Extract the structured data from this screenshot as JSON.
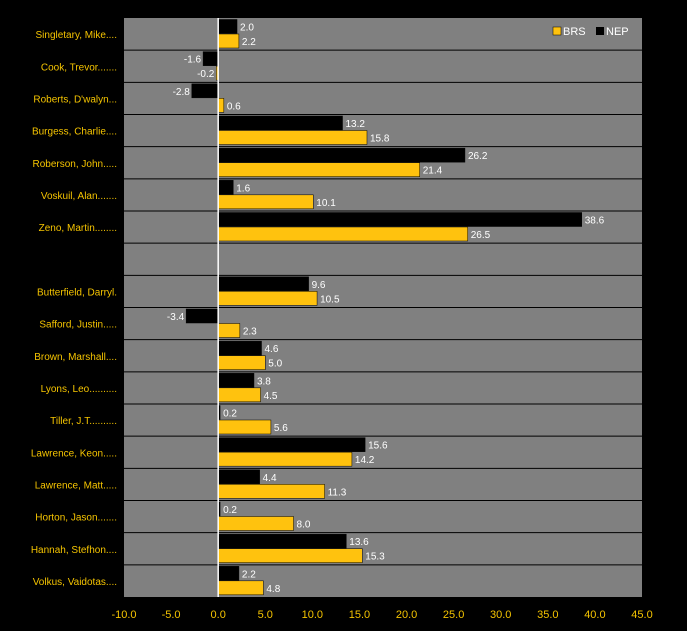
{
  "chart_data": {
    "type": "bar",
    "orientation": "horizontal",
    "title": "",
    "xlabel": "",
    "ylabel": "",
    "xlim": [
      -10,
      45
    ],
    "x_ticks": [
      "-10.0",
      "-5.0",
      "0.0",
      "5.0",
      "10.0",
      "15.0",
      "20.0",
      "25.0",
      "30.0",
      "35.0",
      "40.0",
      "45.0"
    ],
    "grid": true,
    "legend_position": "top-right",
    "colors": {
      "background": "#000000",
      "plot_area": "#808080",
      "BRS": "#ffc20e",
      "NEP": "#000000",
      "text": "#f5c400"
    },
    "categories": [
      "Singletary, Mike....",
      "Cook, Trevor.......",
      "Roberts, D'walyn...",
      "Burgess, Charlie....",
      "Roberson, John.....",
      "Voskuil, Alan.......",
      "Zeno, Martin........",
      "",
      "Butterfield, Darryl.",
      "Safford, Justin.....",
      "Brown, Marshall....",
      "Lyons, Leo..........",
      "Tiller, J.T..........",
      "Lawrence, Keon.....",
      "Lawrence, Matt.....",
      "Horton, Jason.......",
      "Hannah, Stefhon....",
      "Volkus, Vaidotas...."
    ],
    "series": [
      {
        "name": "NEP",
        "values": [
          2.0,
          -1.6,
          -2.8,
          13.2,
          26.2,
          1.6,
          38.6,
          null,
          9.6,
          -3.4,
          4.6,
          3.8,
          0.2,
          15.6,
          4.4,
          0.2,
          13.6,
          2.2
        ]
      },
      {
        "name": "BRS",
        "values": [
          2.2,
          -0.2,
          0.6,
          15.8,
          21.4,
          10.1,
          26.5,
          null,
          10.5,
          2.3,
          5.0,
          4.5,
          5.6,
          14.2,
          11.3,
          8.0,
          15.3,
          4.8
        ]
      }
    ],
    "legend": [
      "BRS",
      "NEP"
    ]
  }
}
